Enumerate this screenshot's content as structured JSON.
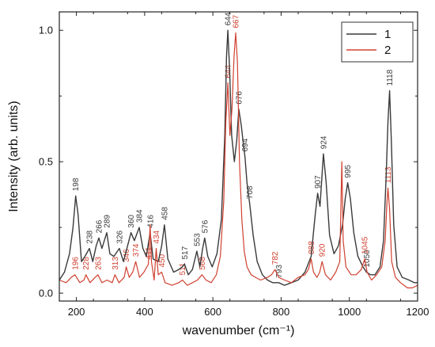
{
  "chart_data": {
    "type": "line",
    "title": "",
    "xlabel": "wavenumber (cm⁻¹)",
    "ylabel": "Intensity (arb. units)",
    "xlim": [
      150,
      1200
    ],
    "ylim": [
      -0.03,
      1.07
    ],
    "x_ticks": [
      200,
      400,
      600,
      800,
      1000,
      1200
    ],
    "y_ticks": [
      0.0,
      0.5,
      1.0
    ],
    "y_tick_labels": [
      "0.0",
      "0.5",
      "1.0"
    ],
    "grid": false,
    "legend_position": "top-right",
    "series": [
      {
        "name": "1",
        "color": "#3a3a3a",
        "points": [
          [
            150,
            0.05
          ],
          [
            165,
            0.08
          ],
          [
            180,
            0.15
          ],
          [
            190,
            0.25
          ],
          [
            198,
            0.37
          ],
          [
            205,
            0.3
          ],
          [
            215,
            0.12
          ],
          [
            225,
            0.14
          ],
          [
            238,
            0.17
          ],
          [
            248,
            0.12
          ],
          [
            258,
            0.18
          ],
          [
            266,
            0.21
          ],
          [
            275,
            0.17
          ],
          [
            282,
            0.2
          ],
          [
            289,
            0.23
          ],
          [
            298,
            0.15
          ],
          [
            310,
            0.14
          ],
          [
            326,
            0.17
          ],
          [
            338,
            0.12
          ],
          [
            350,
            0.18
          ],
          [
            360,
            0.23
          ],
          [
            370,
            0.2
          ],
          [
            384,
            0.25
          ],
          [
            395,
            0.17
          ],
          [
            405,
            0.14
          ],
          [
            416,
            0.23
          ],
          [
            425,
            0.13
          ],
          [
            440,
            0.12
          ],
          [
            450,
            0.18
          ],
          [
            458,
            0.26
          ],
          [
            468,
            0.13
          ],
          [
            485,
            0.08
          ],
          [
            500,
            0.09
          ],
          [
            510,
            0.1
          ],
          [
            517,
            0.11
          ],
          [
            528,
            0.07
          ],
          [
            540,
            0.09
          ],
          [
            553,
            0.16
          ],
          [
            562,
            0.1
          ],
          [
            570,
            0.17
          ],
          [
            576,
            0.21
          ],
          [
            585,
            0.14
          ],
          [
            598,
            0.1
          ],
          [
            612,
            0.15
          ],
          [
            625,
            0.28
          ],
          [
            635,
            0.6
          ],
          [
            640,
            0.9
          ],
          [
            644,
            1.0
          ],
          [
            649,
            0.85
          ],
          [
            655,
            0.6
          ],
          [
            663,
            0.5
          ],
          [
            670,
            0.58
          ],
          [
            676,
            0.7
          ],
          [
            683,
            0.64
          ],
          [
            690,
            0.56
          ],
          [
            694,
            0.52
          ],
          [
            700,
            0.42
          ],
          [
            708,
            0.34
          ],
          [
            718,
            0.22
          ],
          [
            730,
            0.12
          ],
          [
            745,
            0.07
          ],
          [
            760,
            0.05
          ],
          [
            775,
            0.04
          ],
          [
            793,
            0.04
          ],
          [
            810,
            0.03
          ],
          [
            830,
            0.04
          ],
          [
            850,
            0.05
          ],
          [
            870,
            0.08
          ],
          [
            888,
            0.14
          ],
          [
            900,
            0.3
          ],
          [
            907,
            0.38
          ],
          [
            914,
            0.33
          ],
          [
            924,
            0.53
          ],
          [
            932,
            0.42
          ],
          [
            942,
            0.22
          ],
          [
            955,
            0.15
          ],
          [
            968,
            0.18
          ],
          [
            980,
            0.26
          ],
          [
            988,
            0.36
          ],
          [
            995,
            0.42
          ],
          [
            1003,
            0.36
          ],
          [
            1013,
            0.23
          ],
          [
            1025,
            0.14
          ],
          [
            1040,
            0.1
          ],
          [
            1050,
            0.08
          ],
          [
            1062,
            0.07
          ],
          [
            1075,
            0.07
          ],
          [
            1090,
            0.1
          ],
          [
            1100,
            0.2
          ],
          [
            1108,
            0.45
          ],
          [
            1113,
            0.65
          ],
          [
            1118,
            0.77
          ],
          [
            1123,
            0.58
          ],
          [
            1130,
            0.26
          ],
          [
            1140,
            0.1
          ],
          [
            1155,
            0.06
          ],
          [
            1175,
            0.05
          ],
          [
            1190,
            0.04
          ],
          [
            1200,
            0.04
          ]
        ]
      },
      {
        "name": "2",
        "color": "#d04030",
        "points": [
          [
            150,
            0.05
          ],
          [
            170,
            0.04
          ],
          [
            185,
            0.06
          ],
          [
            196,
            0.07
          ],
          [
            210,
            0.04
          ],
          [
            222,
            0.05
          ],
          [
            228,
            0.07
          ],
          [
            240,
            0.04
          ],
          [
            255,
            0.06
          ],
          [
            263,
            0.07
          ],
          [
            275,
            0.04
          ],
          [
            290,
            0.05
          ],
          [
            305,
            0.04
          ],
          [
            313,
            0.07
          ],
          [
            325,
            0.04
          ],
          [
            340,
            0.06
          ],
          [
            346,
            0.1
          ],
          [
            355,
            0.06
          ],
          [
            365,
            0.08
          ],
          [
            374,
            0.12
          ],
          [
            385,
            0.06
          ],
          [
            398,
            0.08
          ],
          [
            411,
            0.11
          ],
          [
            416,
            0.26
          ],
          [
            420,
            0.12
          ],
          [
            428,
            0.05
          ],
          [
            434,
            0.17
          ],
          [
            440,
            0.07
          ],
          [
            450,
            0.08
          ],
          [
            460,
            0.04
          ],
          [
            480,
            0.03
          ],
          [
            500,
            0.04
          ],
          [
            511,
            0.05
          ],
          [
            525,
            0.03
          ],
          [
            540,
            0.04
          ],
          [
            555,
            0.05
          ],
          [
            568,
            0.07
          ],
          [
            580,
            0.05
          ],
          [
            595,
            0.04
          ],
          [
            610,
            0.07
          ],
          [
            622,
            0.14
          ],
          [
            632,
            0.35
          ],
          [
            638,
            0.65
          ],
          [
            644,
            0.8
          ],
          [
            650,
            0.6
          ],
          [
            656,
            0.7
          ],
          [
            662,
            0.9
          ],
          [
            667,
            0.99
          ],
          [
            672,
            0.88
          ],
          [
            678,
            0.5
          ],
          [
            685,
            0.28
          ],
          [
            692,
            0.16
          ],
          [
            700,
            0.1
          ],
          [
            712,
            0.07
          ],
          [
            725,
            0.06
          ],
          [
            740,
            0.05
          ],
          [
            760,
            0.06
          ],
          [
            772,
            0.07
          ],
          [
            782,
            0.09
          ],
          [
            793,
            0.06
          ],
          [
            810,
            0.05
          ],
          [
            830,
            0.04
          ],
          [
            850,
            0.06
          ],
          [
            870,
            0.07
          ],
          [
            880,
            0.09
          ],
          [
            888,
            0.13
          ],
          [
            895,
            0.08
          ],
          [
            905,
            0.06
          ],
          [
            913,
            0.08
          ],
          [
            920,
            0.12
          ],
          [
            930,
            0.07
          ],
          [
            945,
            0.05
          ],
          [
            960,
            0.08
          ],
          [
            972,
            0.12
          ],
          [
            978,
            0.5
          ],
          [
            982,
            0.2
          ],
          [
            990,
            0.1
          ],
          [
            1005,
            0.07
          ],
          [
            1020,
            0.07
          ],
          [
            1035,
            0.09
          ],
          [
            1045,
            0.13
          ],
          [
            1052,
            0.08
          ],
          [
            1065,
            0.05
          ],
          [
            1080,
            0.07
          ],
          [
            1095,
            0.1
          ],
          [
            1105,
            0.2
          ],
          [
            1110,
            0.34
          ],
          [
            1113,
            0.4
          ],
          [
            1118,
            0.32
          ],
          [
            1124,
            0.12
          ],
          [
            1135,
            0.06
          ],
          [
            1150,
            0.04
          ],
          [
            1170,
            0.02
          ],
          [
            1185,
            0.02
          ],
          [
            1200,
            0.03
          ]
        ]
      }
    ],
    "annotations": [
      {
        "text": "198",
        "x": 198,
        "y": 0.37,
        "series": "1"
      },
      {
        "text": "238",
        "x": 238,
        "y": 0.17,
        "series": "1"
      },
      {
        "text": "266",
        "x": 266,
        "y": 0.21,
        "series": "1"
      },
      {
        "text": "289",
        "x": 289,
        "y": 0.23,
        "series": "1"
      },
      {
        "text": "326",
        "x": 326,
        "y": 0.17,
        "series": "1"
      },
      {
        "text": "360",
        "x": 360,
        "y": 0.23,
        "series": "1"
      },
      {
        "text": "384",
        "x": 384,
        "y": 0.25,
        "series": "1"
      },
      {
        "text": "416",
        "x": 416,
        "y": 0.23,
        "series": "1"
      },
      {
        "text": "458",
        "x": 458,
        "y": 0.26,
        "series": "1"
      },
      {
        "text": "517",
        "x": 517,
        "y": 0.11,
        "series": "1"
      },
      {
        "text": "553",
        "x": 553,
        "y": 0.16,
        "series": "1"
      },
      {
        "text": "576",
        "x": 576,
        "y": 0.21,
        "series": "1"
      },
      {
        "text": "644",
        "x": 644,
        "y": 1.0,
        "series": "1"
      },
      {
        "text": "676",
        "x": 676,
        "y": 0.7,
        "series": "1"
      },
      {
        "text": "694",
        "x": 694,
        "y": 0.52,
        "series": "1"
      },
      {
        "text": "708",
        "x": 708,
        "y": 0.34,
        "series": "1"
      },
      {
        "text": "793",
        "x": 793,
        "y": 0.04,
        "series": "1"
      },
      {
        "text": "907",
        "x": 907,
        "y": 0.38,
        "series": "1"
      },
      {
        "text": "924",
        "x": 924,
        "y": 0.53,
        "series": "1"
      },
      {
        "text": "995",
        "x": 995,
        "y": 0.42,
        "series": "1"
      },
      {
        "text": "1050",
        "x": 1050,
        "y": 0.08,
        "series": "1"
      },
      {
        "text": "1118",
        "x": 1118,
        "y": 0.77,
        "series": "1"
      },
      {
        "text": "196",
        "x": 196,
        "y": 0.07,
        "series": "2"
      },
      {
        "text": "228",
        "x": 228,
        "y": 0.07,
        "series": "2"
      },
      {
        "text": "263",
        "x": 263,
        "y": 0.07,
        "series": "2"
      },
      {
        "text": "313",
        "x": 313,
        "y": 0.07,
        "series": "2"
      },
      {
        "text": "346",
        "x": 346,
        "y": 0.1,
        "series": "2"
      },
      {
        "text": "374",
        "x": 374,
        "y": 0.12,
        "series": "2"
      },
      {
        "text": "411",
        "x": 411,
        "y": 0.11,
        "series": "2"
      },
      {
        "text": "434",
        "x": 434,
        "y": 0.17,
        "series": "2"
      },
      {
        "text": "450",
        "x": 450,
        "y": 0.08,
        "series": "2"
      },
      {
        "text": "511",
        "x": 511,
        "y": 0.05,
        "series": "2"
      },
      {
        "text": "568",
        "x": 568,
        "y": 0.07,
        "series": "2"
      },
      {
        "text": "644",
        "x": 644,
        "y": 0.8,
        "series": "2"
      },
      {
        "text": "667",
        "x": 667,
        "y": 0.99,
        "series": "2"
      },
      {
        "text": "782",
        "x": 782,
        "y": 0.09,
        "series": "2"
      },
      {
        "text": "888",
        "x": 888,
        "y": 0.13,
        "series": "2"
      },
      {
        "text": "920",
        "x": 920,
        "y": 0.12,
        "series": "2"
      },
      {
        "text": "1045",
        "x": 1045,
        "y": 0.13,
        "series": "2"
      },
      {
        "text": "1113",
        "x": 1113,
        "y": 0.4,
        "series": "2"
      }
    ]
  }
}
